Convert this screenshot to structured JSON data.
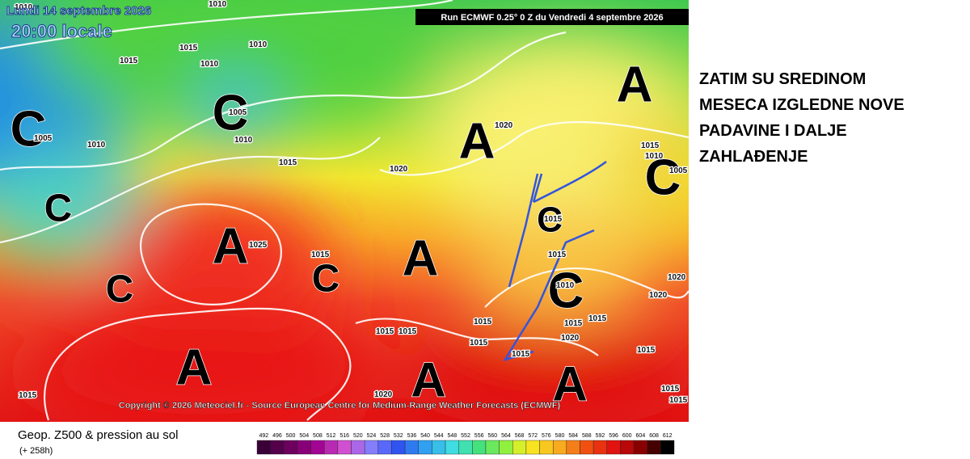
{
  "header": {
    "date": "Lundi 14 septembre 2026",
    "time": "20:00 locale",
    "run": "Run ECMWF 0.25° 0 Z du Vendredi 4 septembre 2026"
  },
  "copyright": "Copyright © 2026 Meteociel.fr - Source European Centre for Medium-Range Weather Forecasts (ECMWF)",
  "markers": [
    "A",
    "A",
    "A",
    "A",
    "A",
    "A",
    "A",
    "C",
    "C",
    "C",
    "C",
    "C",
    "C",
    "C",
    "C"
  ],
  "isobar_labels": [
    "1010",
    "1010",
    "1015",
    "1010",
    "1015",
    "1010",
    "1005",
    "1010",
    "1005",
    "1010",
    "1015",
    "1020",
    "1020",
    "1025",
    "1015",
    "1015",
    "1015",
    "1010",
    "1005",
    "1015",
    "1010",
    "1020",
    "1020",
    "1015",
    "1015",
    "1015",
    "1015",
    "1015",
    "1015",
    "1015",
    "1020",
    "1015",
    "1015",
    "1020",
    "1015",
    "1015"
  ],
  "legend": {
    "title": "Geop. Z500 & pression au sol",
    "subtitle": "(+ 258h)",
    "scale": [
      492,
      496,
      500,
      504,
      508,
      512,
      516,
      520,
      524,
      528,
      532,
      536,
      540,
      544,
      548,
      552,
      556,
      560,
      564,
      568,
      572,
      576,
      580,
      584,
      588,
      592,
      596,
      600,
      604,
      608,
      612
    ]
  },
  "note": {
    "lines": [
      "ZATIM SU SREDINOM",
      "MESECA IZGLEDNE NOVE",
      "PADAVINE I DALJE",
      "ZAHLAĐENJE"
    ]
  }
}
